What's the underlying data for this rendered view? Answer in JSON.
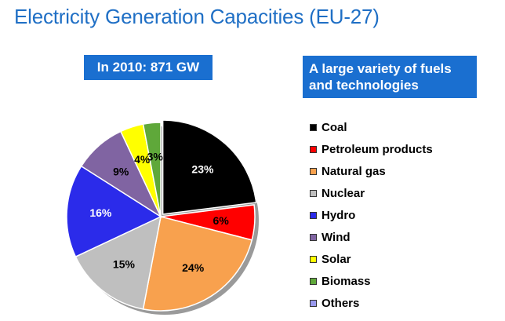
{
  "header": {
    "title": "Electricity Generation Capacities (EU-27)"
  },
  "banners": {
    "left": "In 2010: 871 GW",
    "right_line1": "A large variety of fuels",
    "right_line2": "and technologies"
  },
  "chart_data": {
    "type": "pie",
    "title": "",
    "total_label": "In 2010: 871 GW",
    "slices": [
      {
        "name": "Coal",
        "value": 23,
        "label": "23%",
        "color": "#000000",
        "label_color": "#ffffff"
      },
      {
        "name": "Petroleum products",
        "value": 6,
        "label": "6%",
        "color": "#ff0000",
        "label_color": "#000000"
      },
      {
        "name": "Natural gas",
        "value": 24,
        "label": "24%",
        "color": "#f8a14e",
        "label_color": "#000000"
      },
      {
        "name": "Nuclear",
        "value": 15,
        "label": "15%",
        "color": "#bfbfbf",
        "label_color": "#000000"
      },
      {
        "name": "Hydro",
        "value": 16,
        "label": "16%",
        "color": "#2b2bea",
        "label_color": "#ffffff"
      },
      {
        "name": "Wind",
        "value": 9,
        "label": "9%",
        "color": "#8064a2",
        "label_color": "#000000"
      },
      {
        "name": "Solar",
        "value": 4,
        "label": "4%",
        "color": "#ffff00",
        "label_color": "#000000"
      },
      {
        "name": "Biomass",
        "value": 3,
        "label": "3%",
        "color": "#5fa83a",
        "label_color": "#000000"
      },
      {
        "name": "Others",
        "value": 0,
        "label": "",
        "color": "#9999ee",
        "label_color": "#000000"
      }
    ],
    "legend_position": "right"
  }
}
